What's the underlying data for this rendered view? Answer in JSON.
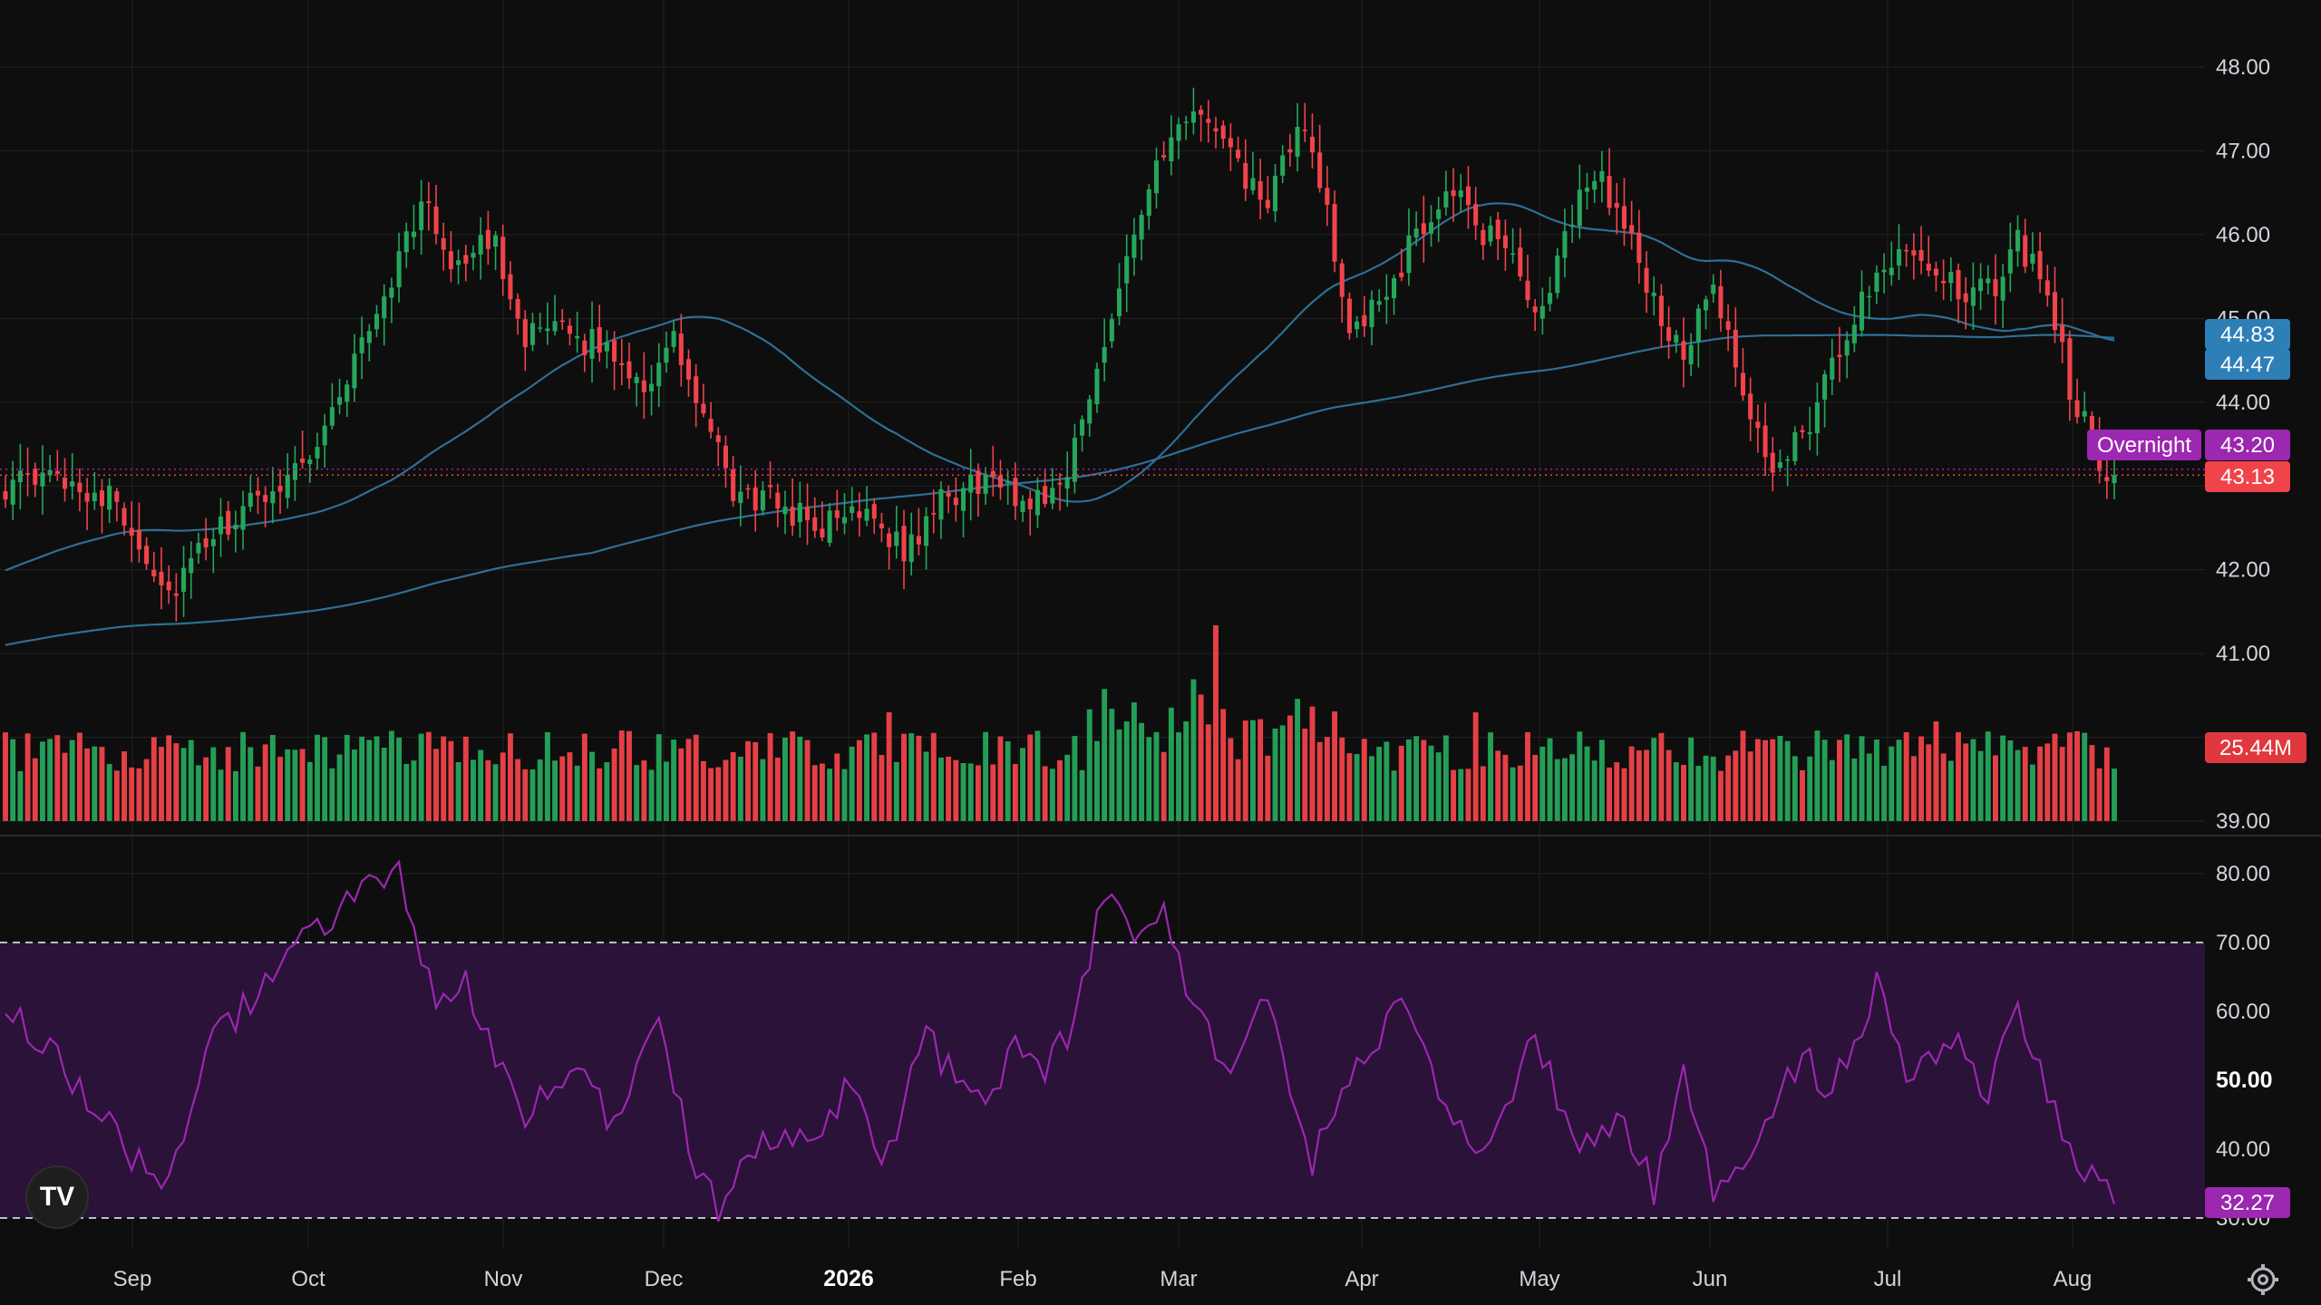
{
  "colors": {
    "background": "#0e0e0e",
    "up": "#26a65b",
    "down": "#f0434a",
    "ma_line": "#2e6f96",
    "rsi_line": "#9c27b0",
    "rsi_band": "#2a1238",
    "ma_badge": "#2e7fb8",
    "overnight_badge": "#9c27b0",
    "price_badge": "#f0434a",
    "volume_badge": "#e0383e",
    "rsi_badge": "#9c27b0",
    "grid": "#222222"
  },
  "logo": {
    "icon": "tradingview-logo-icon",
    "text": "TV"
  },
  "settings": {
    "icon": "gear-icon"
  },
  "chart_data": [
    {
      "type": "candlestick",
      "panel": "price",
      "x_labels": [
        "Sep",
        "Oct",
        "Nov",
        "Dec",
        "2026",
        "Feb",
        "Mar",
        "Apr",
        "May",
        "Jun",
        "Jul",
        "Aug"
      ],
      "bold_x_label": "2026",
      "y_ticks": [
        "48.00",
        "47.00",
        "46.00",
        "45.00",
        "44.00",
        "42.00",
        "41.00",
        "39.00"
      ],
      "ylim": [
        39.0,
        48.0
      ],
      "anchors": [
        {
          "i": 0,
          "v": 43.0
        },
        {
          "i": 8,
          "v": 43.1
        },
        {
          "i": 15,
          "v": 42.8
        },
        {
          "i": 22,
          "v": 41.7
        },
        {
          "i": 28,
          "v": 42.4
        },
        {
          "i": 35,
          "v": 42.9
        },
        {
          "i": 42,
          "v": 43.5
        },
        {
          "i": 47,
          "v": 44.5
        },
        {
          "i": 52,
          "v": 45.5
        },
        {
          "i": 56,
          "v": 46.4
        },
        {
          "i": 60,
          "v": 45.7
        },
        {
          "i": 66,
          "v": 45.9
        },
        {
          "i": 70,
          "v": 44.8
        },
        {
          "i": 76,
          "v": 44.8
        },
        {
          "i": 82,
          "v": 44.6
        },
        {
          "i": 86,
          "v": 44.2
        },
        {
          "i": 90,
          "v": 44.7
        },
        {
          "i": 94,
          "v": 43.8
        },
        {
          "i": 98,
          "v": 42.9
        },
        {
          "i": 104,
          "v": 42.8
        },
        {
          "i": 110,
          "v": 42.5
        },
        {
          "i": 116,
          "v": 42.8
        },
        {
          "i": 121,
          "v": 42.2
        },
        {
          "i": 126,
          "v": 42.8
        },
        {
          "i": 132,
          "v": 43.1
        },
        {
          "i": 137,
          "v": 42.8
        },
        {
          "i": 142,
          "v": 43.0
        },
        {
          "i": 146,
          "v": 44.0
        },
        {
          "i": 150,
          "v": 45.5
        },
        {
          "i": 154,
          "v": 46.6
        },
        {
          "i": 158,
          "v": 47.2
        },
        {
          "i": 161,
          "v": 47.5
        },
        {
          "i": 165,
          "v": 46.9
        },
        {
          "i": 170,
          "v": 46.3
        },
        {
          "i": 174,
          "v": 47.3
        },
        {
          "i": 178,
          "v": 46.4
        },
        {
          "i": 181,
          "v": 44.7
        },
        {
          "i": 186,
          "v": 45.3
        },
        {
          "i": 190,
          "v": 46.0
        },
        {
          "i": 195,
          "v": 46.6
        },
        {
          "i": 198,
          "v": 46.0
        },
        {
          "i": 203,
          "v": 45.9
        },
        {
          "i": 206,
          "v": 44.9
        },
        {
          "i": 210,
          "v": 46.0
        },
        {
          "i": 214,
          "v": 46.8
        },
        {
          "i": 218,
          "v": 46.1
        },
        {
          "i": 222,
          "v": 45.2
        },
        {
          "i": 226,
          "v": 44.5
        },
        {
          "i": 230,
          "v": 45.4
        },
        {
          "i": 234,
          "v": 44.0
        },
        {
          "i": 238,
          "v": 43.2
        },
        {
          "i": 243,
          "v": 43.8
        },
        {
          "i": 248,
          "v": 44.8
        },
        {
          "i": 252,
          "v": 45.6
        },
        {
          "i": 256,
          "v": 45.9
        },
        {
          "i": 260,
          "v": 45.6
        },
        {
          "i": 264,
          "v": 45.2
        },
        {
          "i": 268,
          "v": 45.4
        },
        {
          "i": 271,
          "v": 45.9
        },
        {
          "i": 275,
          "v": 45.4
        },
        {
          "i": 278,
          "v": 44.2
        },
        {
          "i": 282,
          "v": 43.3
        },
        {
          "i": 284,
          "v": 43.1
        }
      ],
      "n_bars": 285,
      "last_price": 43.13,
      "overnight_price": 43.2,
      "overnight_label": "Overnight",
      "price_badge": "43.13",
      "overnight_badge": "43.20",
      "ma_badges": [
        "44.83",
        "44.47"
      ]
    },
    {
      "type": "bar",
      "panel": "volume",
      "series": [
        {
          "name": "Volume"
        }
      ],
      "last_value_label": "25.44M"
    },
    {
      "type": "line",
      "panel": "rsi",
      "y_ticks": [
        "80.00",
        "70.00",
        "60.00",
        "50.00",
        "40.00",
        "30.00"
      ],
      "bold_y_tick": "50.00",
      "ylim": [
        27,
        84
      ],
      "band": [
        30,
        70
      ],
      "anchors": [
        {
          "i": 0,
          "v": 60
        },
        {
          "i": 5,
          "v": 56
        },
        {
          "i": 12,
          "v": 46
        },
        {
          "i": 18,
          "v": 38
        },
        {
          "i": 22,
          "v": 34
        },
        {
          "i": 28,
          "v": 56
        },
        {
          "i": 35,
          "v": 64
        },
        {
          "i": 42,
          "v": 72
        },
        {
          "i": 48,
          "v": 78
        },
        {
          "i": 53,
          "v": 80
        },
        {
          "i": 58,
          "v": 60
        },
        {
          "i": 62,
          "v": 64
        },
        {
          "i": 66,
          "v": 52
        },
        {
          "i": 70,
          "v": 45
        },
        {
          "i": 76,
          "v": 52
        },
        {
          "i": 82,
          "v": 44
        },
        {
          "i": 88,
          "v": 60
        },
        {
          "i": 92,
          "v": 40
        },
        {
          "i": 96,
          "v": 32
        },
        {
          "i": 102,
          "v": 40
        },
        {
          "i": 108,
          "v": 42
        },
        {
          "i": 114,
          "v": 49
        },
        {
          "i": 118,
          "v": 37
        },
        {
          "i": 124,
          "v": 57
        },
        {
          "i": 130,
          "v": 46
        },
        {
          "i": 136,
          "v": 54
        },
        {
          "i": 140,
          "v": 51
        },
        {
          "i": 144,
          "v": 58
        },
        {
          "i": 148,
          "v": 78
        },
        {
          "i": 152,
          "v": 70
        },
        {
          "i": 156,
          "v": 76
        },
        {
          "i": 160,
          "v": 60
        },
        {
          "i": 165,
          "v": 52
        },
        {
          "i": 170,
          "v": 62
        },
        {
          "i": 176,
          "v": 38
        },
        {
          "i": 182,
          "v": 52
        },
        {
          "i": 188,
          "v": 62
        },
        {
          "i": 194,
          "v": 44
        },
        {
          "i": 200,
          "v": 40
        },
        {
          "i": 206,
          "v": 56
        },
        {
          "i": 212,
          "v": 40
        },
        {
          "i": 218,
          "v": 44
        },
        {
          "i": 222,
          "v": 34
        },
        {
          "i": 226,
          "v": 50
        },
        {
          "i": 230,
          "v": 34
        },
        {
          "i": 236,
          "v": 42
        },
        {
          "i": 242,
          "v": 54
        },
        {
          "i": 246,
          "v": 48
        },
        {
          "i": 252,
          "v": 64
        },
        {
          "i": 256,
          "v": 50
        },
        {
          "i": 262,
          "v": 56
        },
        {
          "i": 267,
          "v": 48
        },
        {
          "i": 271,
          "v": 60
        },
        {
          "i": 275,
          "v": 48
        },
        {
          "i": 278,
          "v": 40
        },
        {
          "i": 282,
          "v": 34
        },
        {
          "i": 284,
          "v": 32
        }
      ],
      "last_value_label": "32.27"
    }
  ]
}
